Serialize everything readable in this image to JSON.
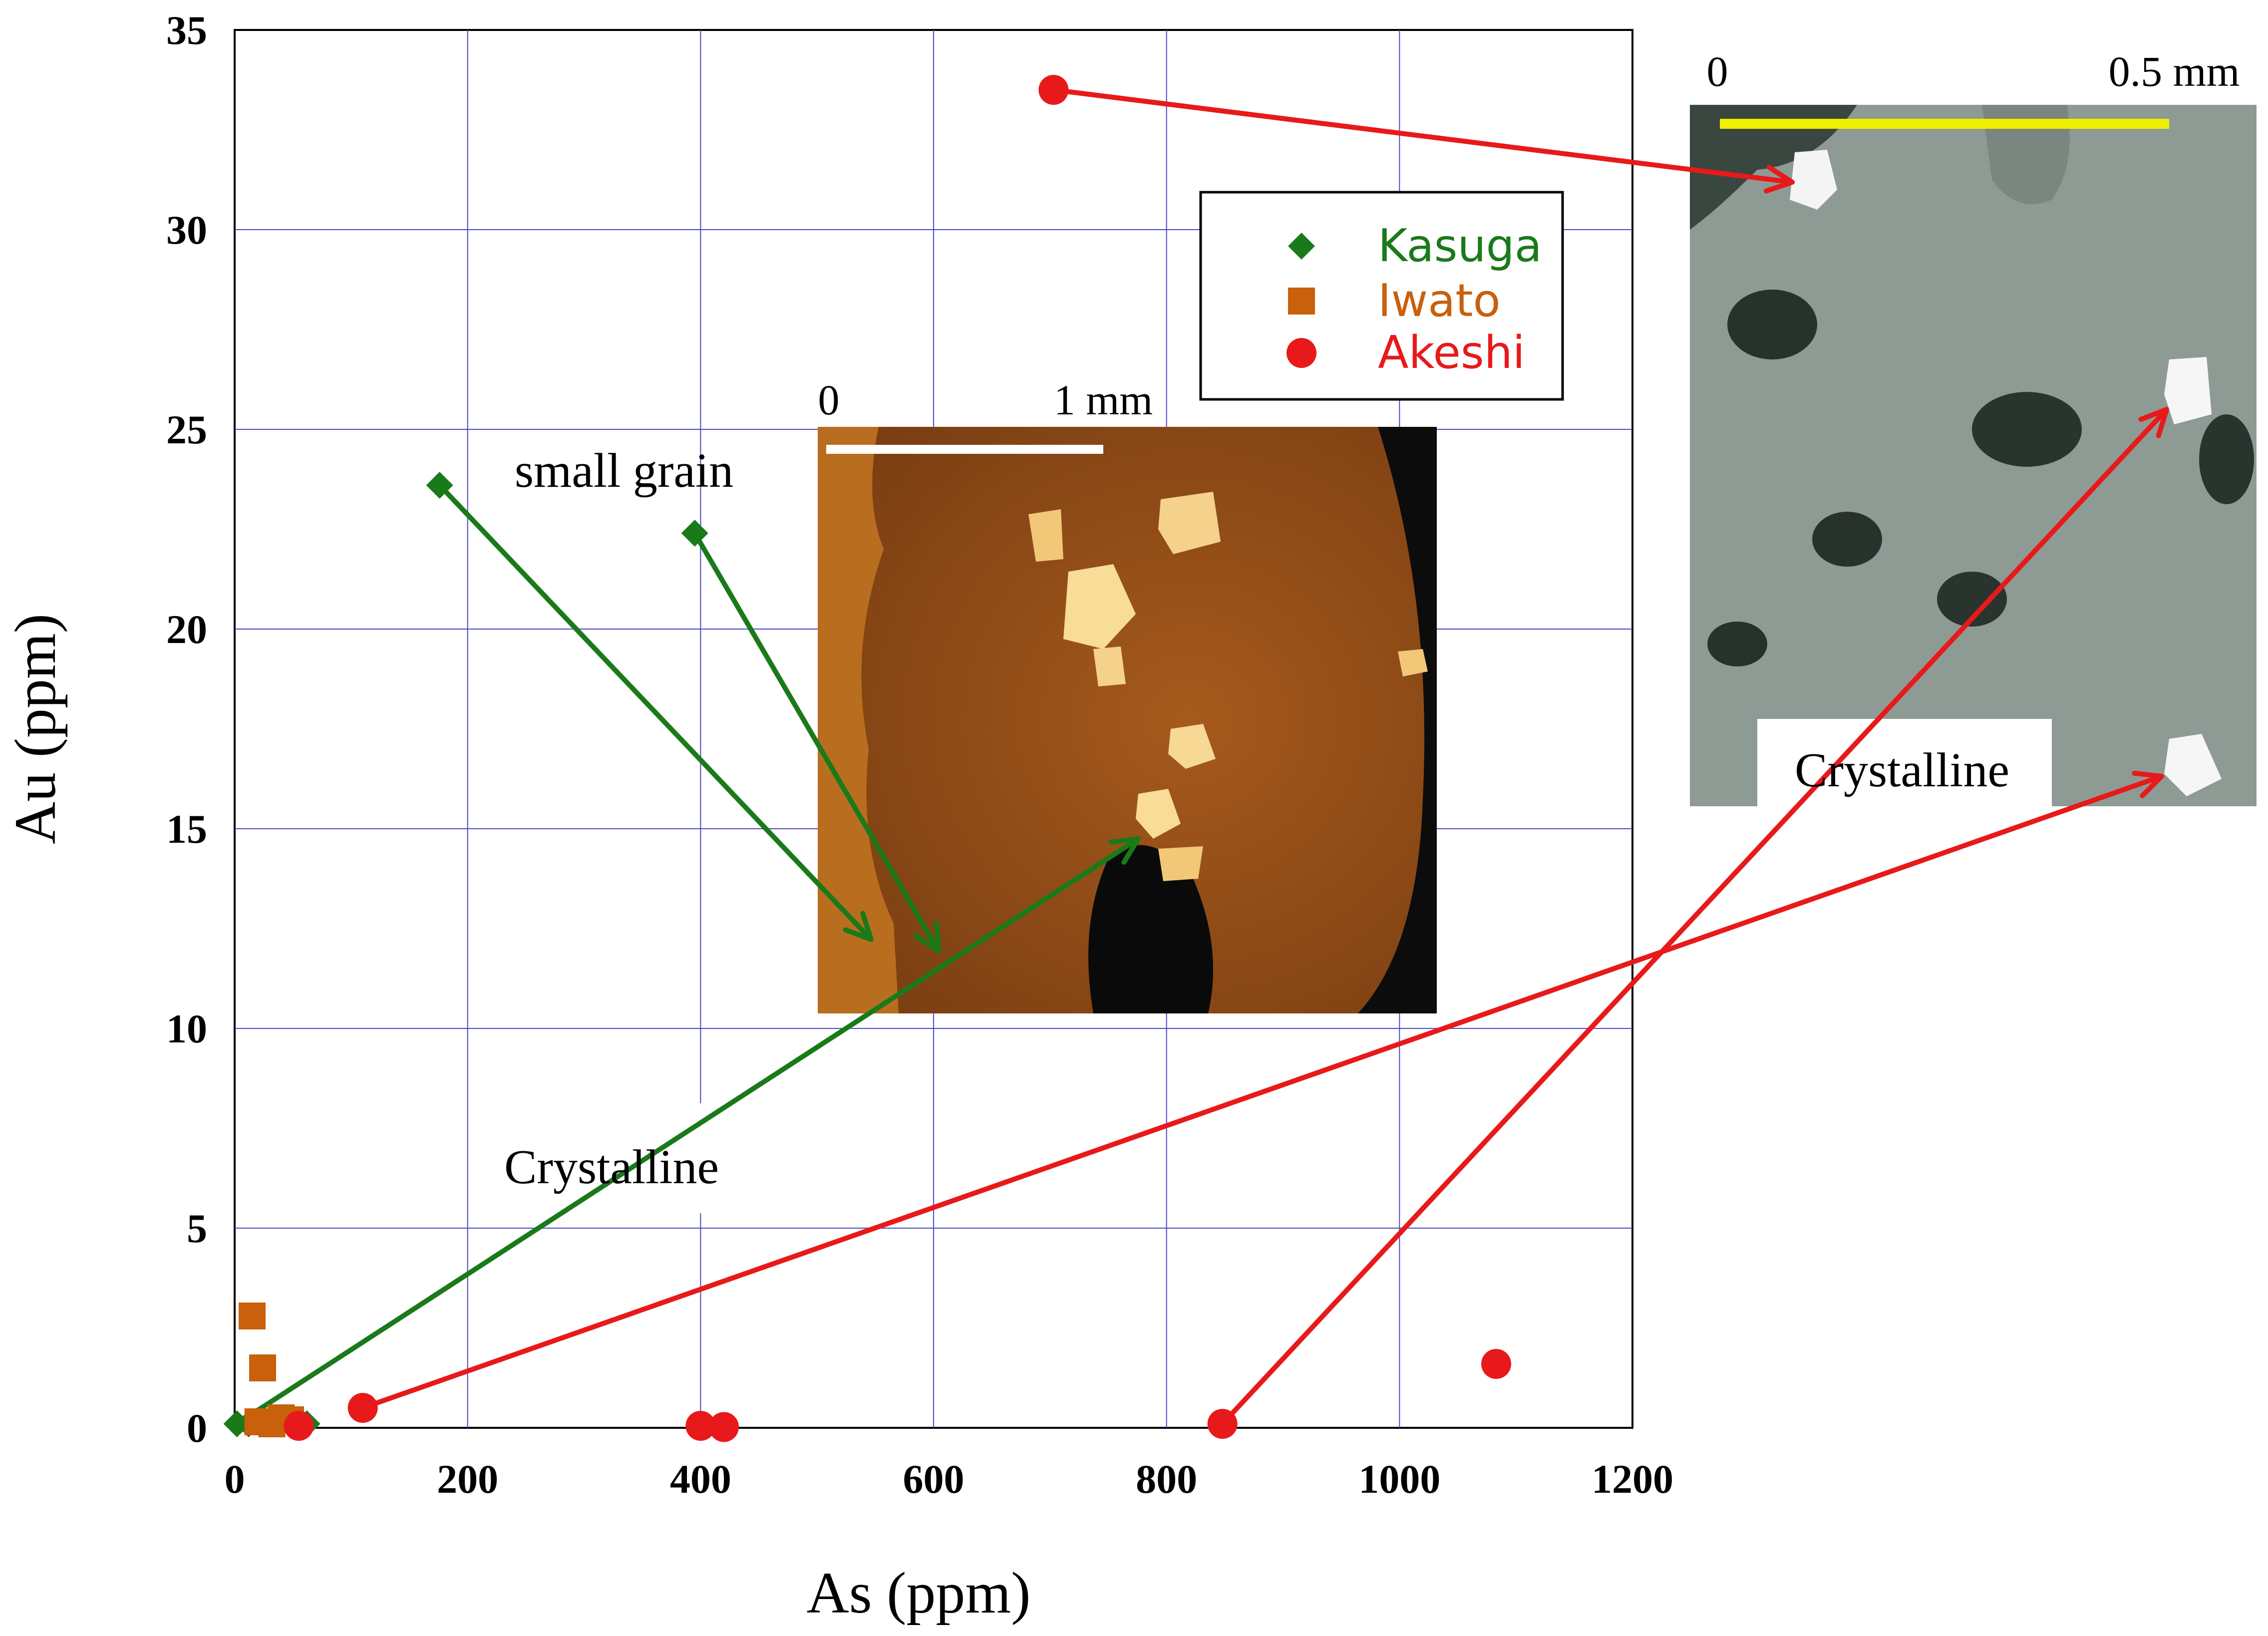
{
  "chart_data": {
    "type": "scatter",
    "xlabel": "As (ppm)",
    "ylabel": "Au (ppm)",
    "xlim": [
      0,
      1200
    ],
    "ylim": [
      0,
      35
    ],
    "xticks": [
      "0",
      "200",
      "400",
      "600",
      "800",
      "1000",
      "1200"
    ],
    "yticks": [
      "0",
      "5",
      "10",
      "15",
      "20",
      "25",
      "30",
      "35"
    ],
    "grid": true,
    "legend": "top-right",
    "series": [
      {
        "name": "Kasuga",
        "marker": "diamond",
        "color": "#1a7a1a",
        "points": [
          [
            2,
            0.1
          ],
          [
            12,
            0.1
          ],
          [
            50,
            0.1
          ],
          [
            62,
            0.1
          ],
          [
            176,
            23.6
          ],
          [
            395,
            22.4
          ]
        ]
      },
      {
        "name": "Iwato",
        "marker": "square",
        "color": "#c8600c",
        "points": [
          [
            15,
            2.8
          ],
          [
            24,
            1.5
          ],
          [
            20,
            0.15
          ],
          [
            32,
            0.1
          ],
          [
            40,
            0.25
          ],
          [
            48,
            0.2
          ]
        ]
      },
      {
        "name": "Akeshi",
        "marker": "circle",
        "color": "#e8191a",
        "points": [
          [
            55,
            0.05
          ],
          [
            110,
            0.5
          ],
          [
            400,
            0.05
          ],
          [
            420,
            0.02
          ],
          [
            703,
            33.5
          ],
          [
            848,
            0.1
          ],
          [
            1083,
            1.6
          ]
        ]
      }
    ],
    "annotations": {
      "small_grain": "small grain",
      "crystalline_left": "Crystalline",
      "crystalline_right": "Crystalline"
    },
    "insets": [
      {
        "name": "micrograph-left",
        "scale_start": "0",
        "scale_end": "1 mm",
        "scale_color": "#ffffff"
      },
      {
        "name": "micrograph-right",
        "scale_start": "0",
        "scale_end": "0.5 mm",
        "scale_color": "#f0f000"
      }
    ]
  }
}
